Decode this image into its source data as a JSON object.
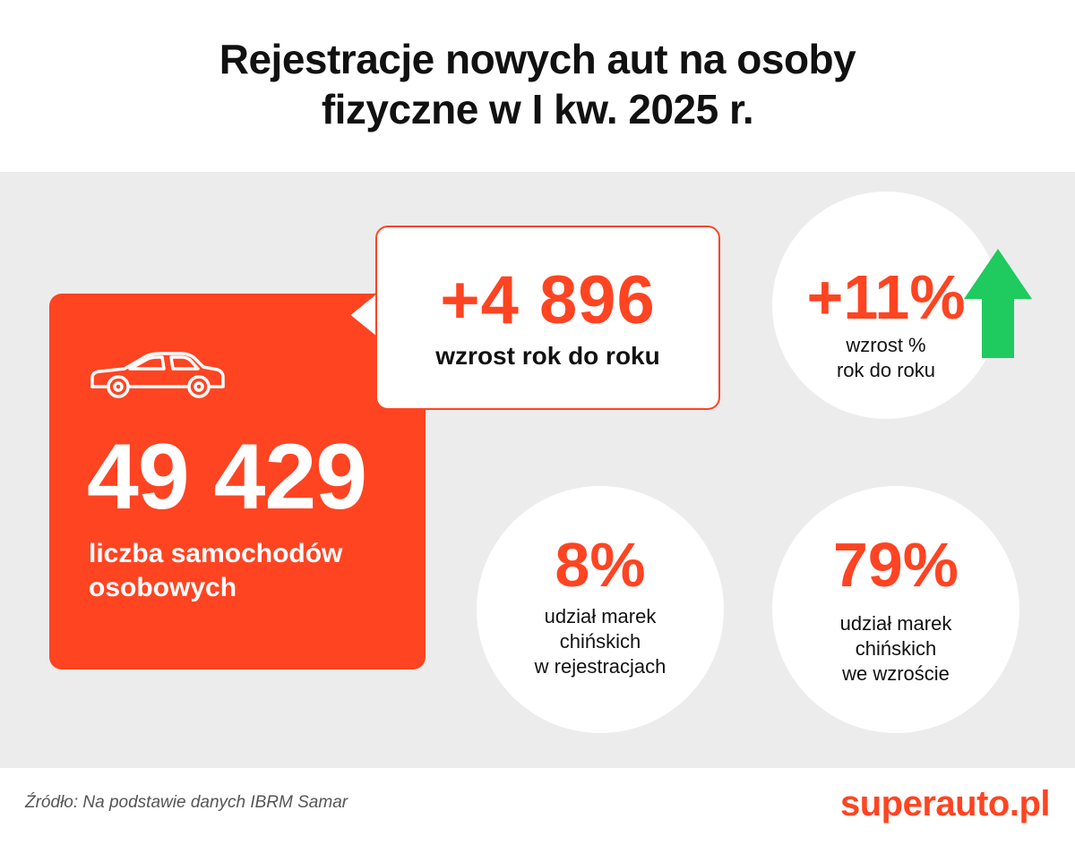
{
  "title_line1": "Rejestracje nowych aut na osoby",
  "title_line2": "fizyczne w I kw. 2025 r.",
  "main_card": {
    "value": "49 429",
    "label_line1": "liczba samochodów",
    "label_line2": "osobowych",
    "icon": "car-icon"
  },
  "growth_bubble": {
    "value": "+4 896",
    "label": "wzrost rok do roku"
  },
  "circles": [
    {
      "value": "+11%",
      "label": "wzrost %\nrok do roku",
      "icon": "arrow-up-icon"
    },
    {
      "value": "8%",
      "label": "udział marek\nchińskich\nw rejestracjach"
    },
    {
      "value": "79%",
      "label": "udział marek\nchińskich\nwe wzroście"
    }
  ],
  "footer": {
    "source": "Źródło: Na podstawie danych IBRM Samar",
    "logo": "superauto.pl"
  },
  "colors": {
    "accent": "#ff4422",
    "panel_bg": "#ececec",
    "arrow": "#1fca5e",
    "text": "#111111"
  }
}
